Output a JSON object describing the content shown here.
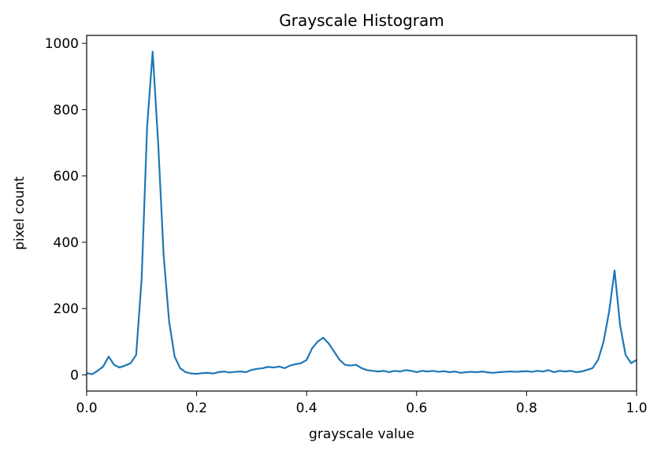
{
  "chart_data": {
    "type": "line",
    "title": "Grayscale Histogram",
    "xlabel": "grayscale value",
    "ylabel": "pixel count",
    "x": [
      0.0,
      0.01,
      0.02,
      0.03,
      0.04,
      0.05,
      0.06,
      0.07,
      0.08,
      0.09,
      0.1,
      0.11,
      0.12,
      0.13,
      0.14,
      0.15,
      0.16,
      0.17,
      0.18,
      0.19,
      0.2,
      0.21,
      0.22,
      0.23,
      0.24,
      0.25,
      0.26,
      0.27,
      0.28,
      0.29,
      0.3,
      0.31,
      0.32,
      0.33,
      0.34,
      0.35,
      0.36,
      0.37,
      0.38,
      0.39,
      0.4,
      0.41,
      0.42,
      0.43,
      0.44,
      0.45,
      0.46,
      0.47,
      0.48,
      0.49,
      0.5,
      0.51,
      0.52,
      0.53,
      0.54,
      0.55,
      0.56,
      0.57,
      0.58,
      0.59,
      0.6,
      0.61,
      0.62,
      0.63,
      0.64,
      0.65,
      0.66,
      0.67,
      0.68,
      0.69,
      0.7,
      0.71,
      0.72,
      0.73,
      0.74,
      0.75,
      0.76,
      0.77,
      0.78,
      0.79,
      0.8,
      0.81,
      0.82,
      0.83,
      0.84,
      0.85,
      0.86,
      0.87,
      0.88,
      0.89,
      0.9,
      0.91,
      0.92,
      0.93,
      0.94,
      0.95,
      0.96,
      0.97,
      0.98,
      0.99,
      1.0
    ],
    "series": [
      {
        "name": "pixel count",
        "color": "#1f77b4",
        "values": [
          5,
          2,
          12,
          25,
          55,
          30,
          22,
          28,
          35,
          60,
          290,
          750,
          975,
          700,
          360,
          160,
          55,
          20,
          8,
          4,
          3,
          5,
          6,
          4,
          8,
          10,
          7,
          9,
          10,
          8,
          15,
          18,
          20,
          24,
          22,
          25,
          20,
          28,
          32,
          35,
          45,
          80,
          100,
          112,
          95,
          70,
          45,
          30,
          28,
          30,
          20,
          14,
          12,
          10,
          12,
          8,
          12,
          10,
          14,
          12,
          8,
          12,
          10,
          12,
          9,
          11,
          8,
          10,
          6,
          8,
          9,
          8,
          10,
          7,
          6,
          8,
          9,
          10,
          9,
          10,
          11,
          9,
          12,
          10,
          14,
          8,
          12,
          10,
          12,
          8,
          10,
          15,
          20,
          45,
          100,
          190,
          315,
          150,
          60,
          35,
          45
        ]
      }
    ],
    "xlim": [
      0,
      1
    ],
    "xticks": [
      {
        "value": 0,
        "label": "0.0"
      },
      0.2,
      0.4,
      0.6,
      0.8,
      {
        "value": 1,
        "label": "1.0"
      }
    ],
    "ylim": [
      -49,
      1024
    ],
    "yticks": [
      0,
      200,
      400,
      600,
      800,
      1000
    ],
    "grid": false
  }
}
